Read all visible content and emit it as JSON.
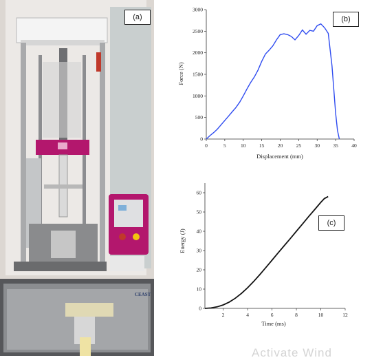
{
  "panels": {
    "a": "(a)",
    "b": "(b)",
    "c": "(c)"
  },
  "photo": {
    "brand_label": "CEAST"
  },
  "watermark": "Activate Wind",
  "chart_data": [
    {
      "id": "b",
      "type": "line",
      "xlabel": "Displacement (mm)",
      "ylabel": "Force (N)",
      "xlim": [
        0,
        40
      ],
      "ylim": [
        0,
        3000
      ],
      "xticks": [
        0,
        5,
        10,
        15,
        20,
        25,
        30,
        35,
        40
      ],
      "yticks": [
        0,
        500,
        1000,
        1500,
        2000,
        2500,
        3000
      ],
      "grid": false,
      "color": "#2f4cf0",
      "x": [
        0,
        1,
        2,
        3,
        4,
        5,
        6,
        7,
        8,
        9,
        10,
        11,
        12,
        13,
        14,
        15,
        16,
        17,
        18,
        19,
        20,
        21,
        22,
        23,
        24,
        25,
        26,
        27,
        28,
        29,
        30,
        31,
        32,
        33,
        34,
        35,
        35.5,
        36
      ],
      "y": [
        0,
        80,
        150,
        230,
        330,
        430,
        530,
        630,
        730,
        850,
        1000,
        1160,
        1310,
        1440,
        1600,
        1800,
        1970,
        2060,
        2160,
        2300,
        2420,
        2440,
        2420,
        2380,
        2300,
        2400,
        2530,
        2430,
        2520,
        2500,
        2630,
        2670,
        2580,
        2450,
        1700,
        600,
        200,
        0
      ]
    },
    {
      "id": "c",
      "type": "line",
      "xlabel": "Time (ms)",
      "ylabel": "Energy (J)",
      "xlim": [
        0.5,
        12
      ],
      "ylim": [
        0,
        65
      ],
      "xticks": [
        2,
        4,
        6,
        8,
        10,
        12
      ],
      "yticks": [
        0,
        10,
        20,
        30,
        40,
        50,
        60
      ],
      "grid": false,
      "color": "#111111",
      "x": [
        0.5,
        1,
        1.5,
        2,
        2.5,
        3,
        3.5,
        4,
        4.5,
        5,
        5.5,
        6,
        6.5,
        7,
        7.5,
        8,
        8.5,
        9,
        9.5,
        10,
        10.3,
        10.6
      ],
      "y": [
        0,
        0.2,
        0.8,
        1.8,
        3.3,
        5.3,
        7.8,
        10.7,
        14,
        17.5,
        21.2,
        25,
        28.8,
        32.5,
        36.2,
        40,
        43.8,
        47.6,
        51.3,
        55,
        57,
        58
      ]
    }
  ]
}
